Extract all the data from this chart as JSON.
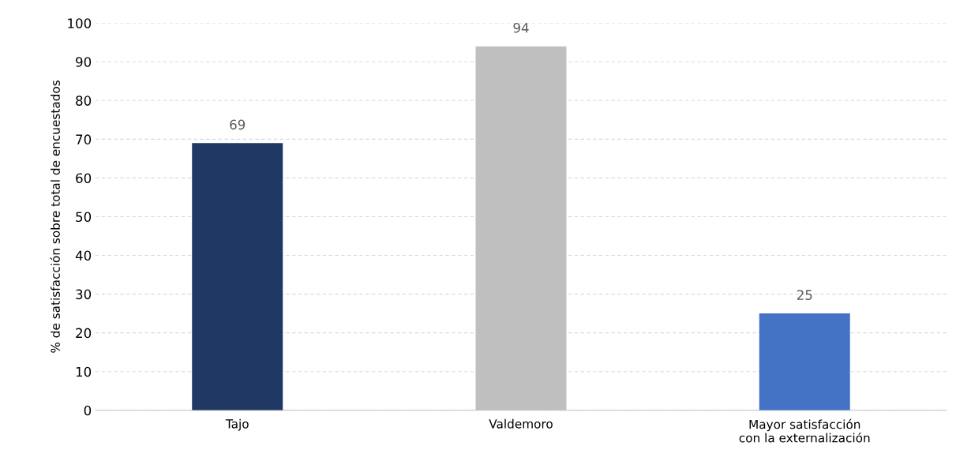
{
  "chart_data": {
    "type": "bar",
    "ylabel": "% de satisfacción sobre total de encuestados",
    "categories": [
      "Tajo",
      "Valdemoro",
      "Mayor satisfacción\ncon la externalización"
    ],
    "values": [
      69,
      94,
      25
    ],
    "colors": [
      "#1f3864",
      "#bfbfbf",
      "#4472c4"
    ],
    "ylim": [
      0,
      100
    ],
    "yticks": [
      0,
      10,
      20,
      30,
      40,
      50,
      60,
      70,
      80,
      90,
      100
    ],
    "grid": "y",
    "data_labels": true,
    "legend": false
  }
}
